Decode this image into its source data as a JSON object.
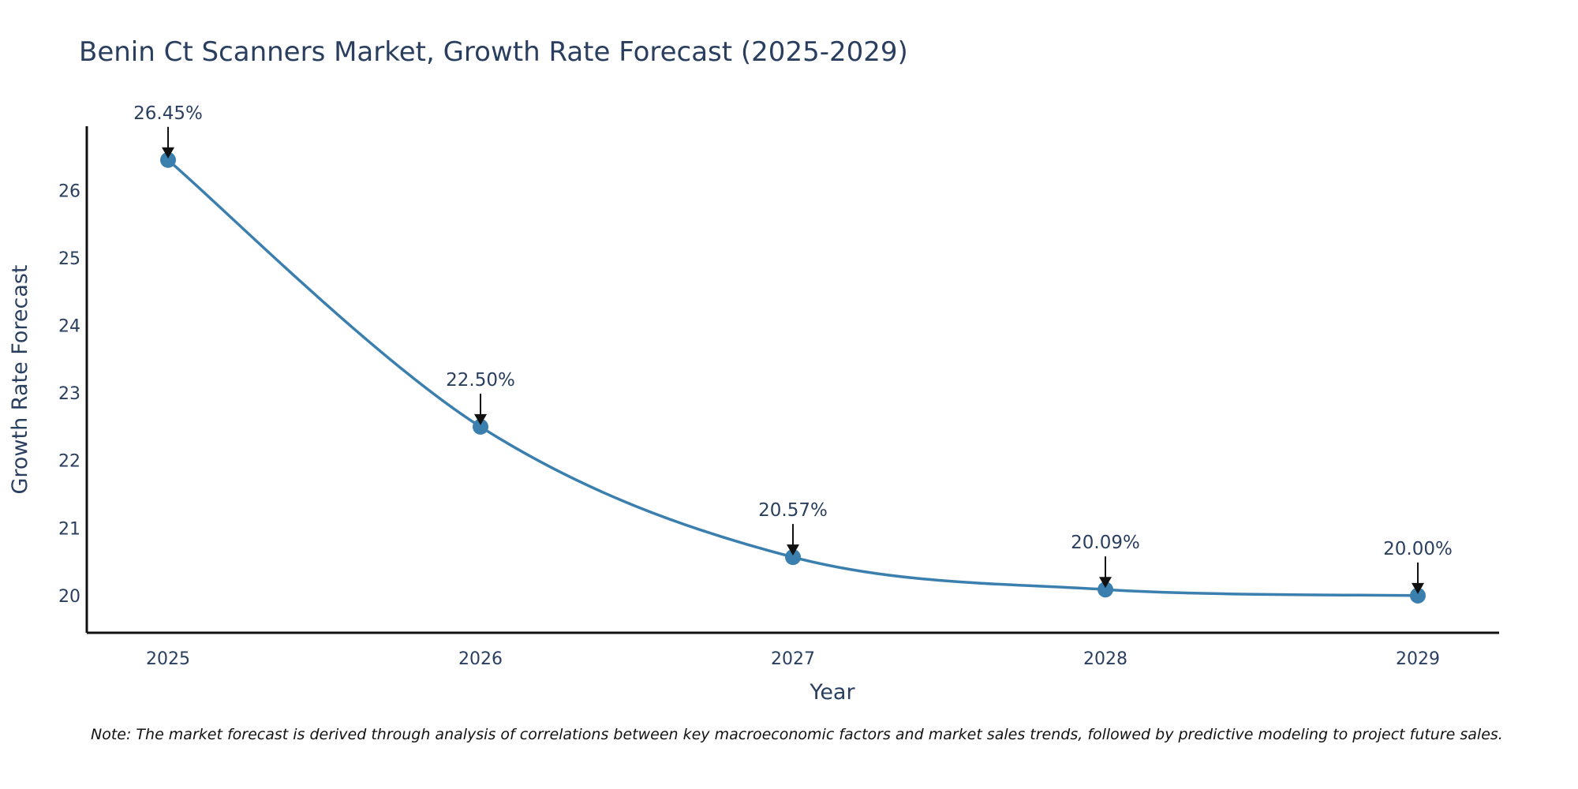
{
  "chart_data": {
    "type": "line",
    "title": "Benin Ct Scanners Market, Growth Rate Forecast (2025-2029)",
    "xlabel": "Year",
    "ylabel": "Growth Rate Forecast",
    "categories": [
      "2025",
      "2026",
      "2027",
      "2028",
      "2029"
    ],
    "series": [
      {
        "name": "Growth Rate Forecast",
        "values": [
          26.45,
          22.5,
          20.57,
          20.09,
          20.0
        ]
      }
    ],
    "data_labels": [
      "26.45%",
      "22.50%",
      "20.57%",
      "20.09%",
      "20.00%"
    ],
    "y_ticks": [
      "20",
      "21",
      "22",
      "23",
      "24",
      "25",
      "26"
    ],
    "ylim": [
      19.45,
      26.95
    ],
    "grid": false,
    "line_color": "#3a7fae",
    "marker_color": "#3a7fae"
  },
  "note": "Note: The market forecast is derived through analysis of correlations between key macroeconomic factors and market sales trends, followed by predictive modeling to project future sales."
}
